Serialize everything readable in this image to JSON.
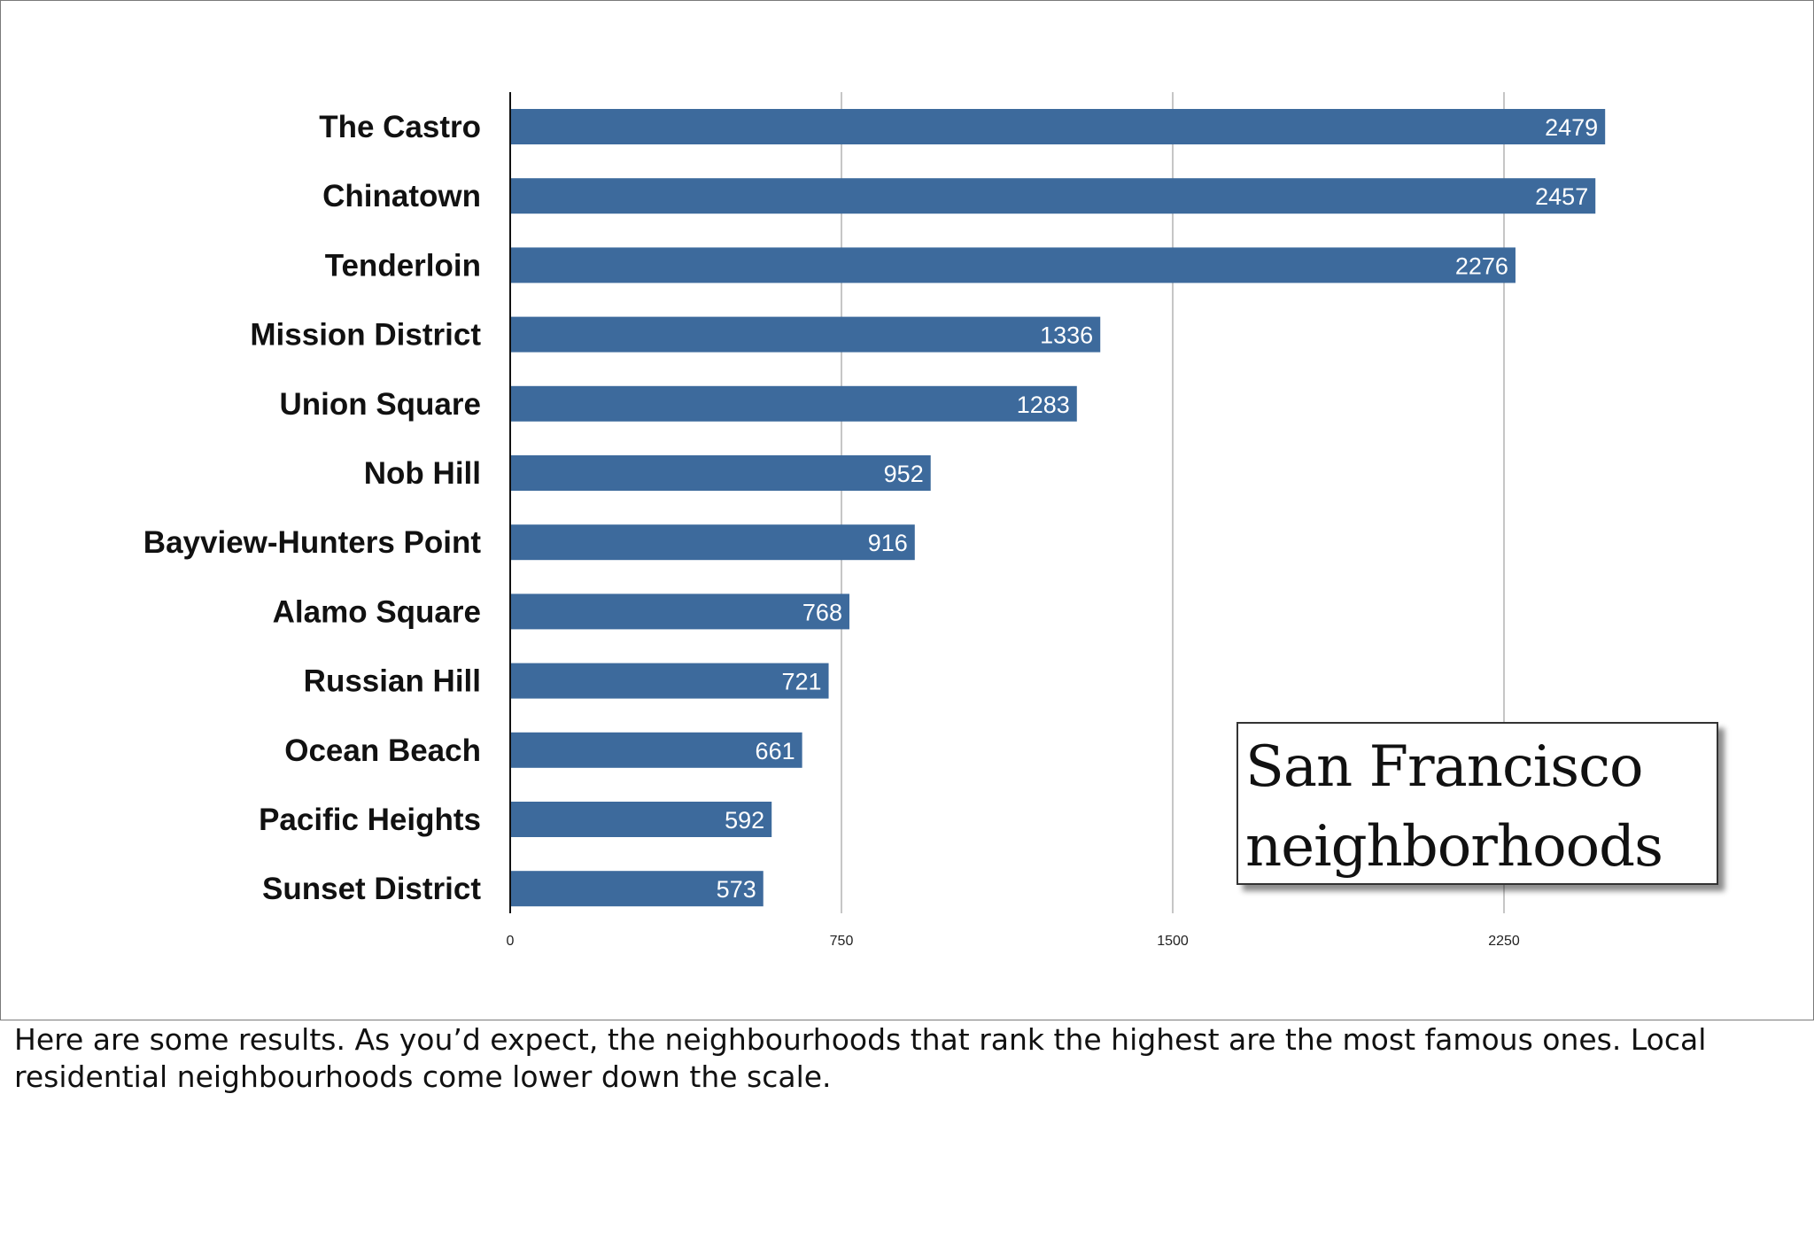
{
  "chart_data": {
    "type": "bar",
    "orientation": "horizontal",
    "title": "San Francisco neighborhoods",
    "categories": [
      "The Castro",
      "Chinatown",
      "Tenderloin",
      "Mission District",
      "Union Square",
      "Nob Hill",
      "Bayview-Hunters Point",
      "Alamo Square",
      "Russian Hill",
      "Ocean Beach",
      "Pacific Heights",
      "Sunset District"
    ],
    "values": [
      2479,
      2457,
      2276,
      1336,
      1283,
      952,
      916,
      768,
      721,
      661,
      592,
      573
    ],
    "value_labels": [
      "2479",
      "2457",
      "2276",
      "1336",
      "1283",
      "952",
      "916",
      "768",
      "721",
      "661",
      "592",
      "573"
    ],
    "xlim": [
      0,
      3000
    ],
    "xticks": [
      0,
      750,
      1500,
      2250
    ],
    "xtick_labels": [
      "0",
      "750",
      "1500",
      "2250"
    ],
    "xlabel": "",
    "ylabel": "",
    "grid": true,
    "legend": "none",
    "bar_color": "#3d6a9c"
  },
  "caption": "Here are some results. As you’d expect, the neighbourhoods that rank the highest are the most famous ones. Local residential neighbourhoods come lower down the scale."
}
